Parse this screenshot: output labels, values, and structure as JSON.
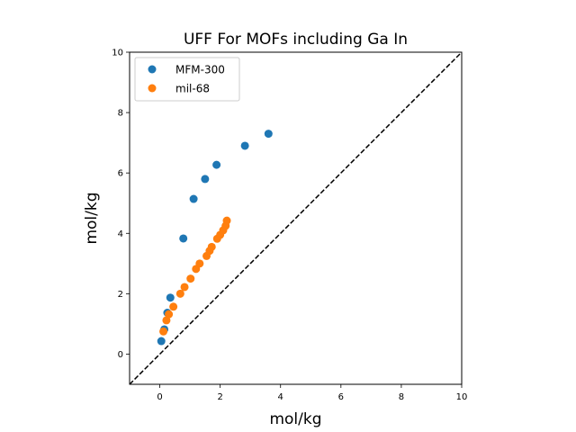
{
  "chart_data": {
    "type": "scatter",
    "title": "UFF For MOFs including Ga In",
    "xlabel": "mol/kg",
    "ylabel": "mol/kg",
    "xlim": [
      -1,
      10
    ],
    "ylim": [
      -1,
      10
    ],
    "xticks": [
      0,
      2,
      4,
      6,
      8,
      10
    ],
    "yticks": [
      0,
      2,
      4,
      6,
      8,
      10
    ],
    "grid": false,
    "legend_position": "top-left",
    "reference_line": {
      "style": "dashed",
      "color": "#000000",
      "from": [
        -1,
        -1
      ],
      "to": [
        10,
        10
      ]
    },
    "series": [
      {
        "name": "MFM-300",
        "color": "#1f77b4",
        "points": [
          [
            0.05,
            0.43
          ],
          [
            0.15,
            0.82
          ],
          [
            0.25,
            1.37
          ],
          [
            0.35,
            1.87
          ],
          [
            0.78,
            3.83
          ],
          [
            1.12,
            5.14
          ],
          [
            1.5,
            5.8
          ],
          [
            1.88,
            6.27
          ],
          [
            2.82,
            6.9
          ],
          [
            3.6,
            7.3
          ]
        ]
      },
      {
        "name": "mil-68",
        "color": "#ff7f0e",
        "points": [
          [
            0.12,
            0.75
          ],
          [
            0.22,
            1.12
          ],
          [
            0.3,
            1.32
          ],
          [
            0.45,
            1.57
          ],
          [
            0.68,
            2.0
          ],
          [
            0.82,
            2.22
          ],
          [
            1.02,
            2.5
          ],
          [
            1.2,
            2.82
          ],
          [
            1.32,
            3.0
          ],
          [
            1.55,
            3.25
          ],
          [
            1.65,
            3.42
          ],
          [
            1.72,
            3.55
          ],
          [
            1.9,
            3.82
          ],
          [
            2.0,
            3.95
          ],
          [
            2.1,
            4.1
          ],
          [
            2.18,
            4.25
          ],
          [
            2.22,
            4.42
          ]
        ]
      }
    ]
  }
}
